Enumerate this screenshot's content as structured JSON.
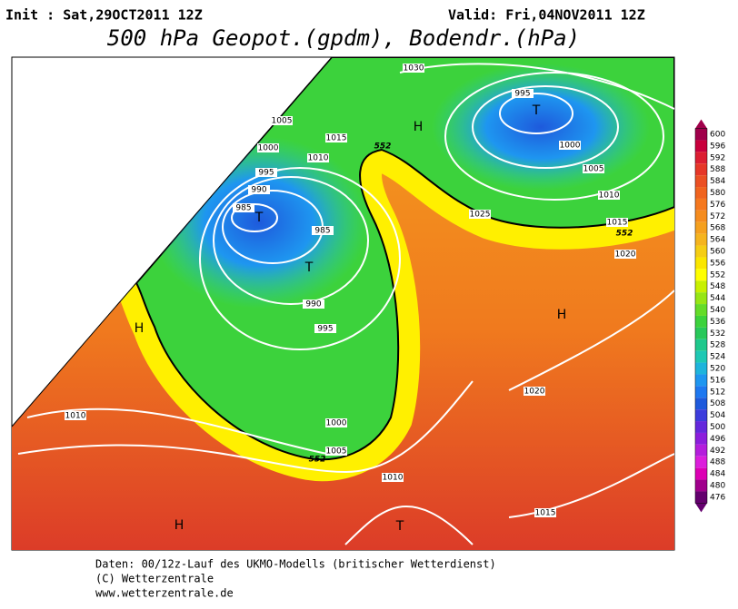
{
  "header": {
    "init": "Init : Sat,29OCT2011 12Z",
    "valid": "Valid: Fri,04NOV2011 12Z",
    "title": "500 hPa Geopot.(gpdm), Bodendr.(hPa)"
  },
  "map": {
    "isobar_labels": [
      "1030",
      "995",
      "1005",
      "1015",
      "1000",
      "1010",
      "995",
      "990",
      "985",
      "985",
      "1000",
      "1005",
      "1010",
      "1025",
      "1015",
      "1020",
      "990",
      "995",
      "1010",
      "1000",
      "1005",
      "1010",
      "1020",
      "1015"
    ],
    "contour_552_labels": [
      "552",
      "552",
      "552"
    ],
    "pressure_centers": [
      "T",
      "H",
      "T",
      "T",
      "H",
      "H",
      "H",
      "T"
    ]
  },
  "colorbar": {
    "labels": [
      600,
      596,
      592,
      588,
      584,
      580,
      576,
      572,
      568,
      564,
      560,
      556,
      552,
      548,
      544,
      540,
      536,
      532,
      528,
      524,
      520,
      516,
      512,
      508,
      504,
      500,
      496,
      492,
      488,
      484,
      480,
      476
    ],
    "colors": [
      "#a0004b",
      "#c8003c",
      "#dc1e32",
      "#e63728",
      "#eb5023",
      "#f0641e",
      "#f5781e",
      "#f58c1e",
      "#f5a01e",
      "#f5b41e",
      "#f5cd14",
      "#fae600",
      "#ffff00",
      "#c8f000",
      "#96e614",
      "#64dc28",
      "#3cd23c",
      "#28c85a",
      "#1ec88c",
      "#1ec8b4",
      "#1eb4dc",
      "#1e96f0",
      "#1e78f0",
      "#1e5adc",
      "#3c3cdc",
      "#6428dc",
      "#8c1edc",
      "#b41edc",
      "#dc1edc",
      "#dc00b4",
      "#a0008c",
      "#64006e"
    ]
  },
  "footer": {
    "lines": [
      "Daten: 00/12z-Lauf des UKMO-Modells (britischer Wetterdienst)",
      "(C) Wetterzentrale",
      "www.wetterzentrale.de"
    ]
  }
}
